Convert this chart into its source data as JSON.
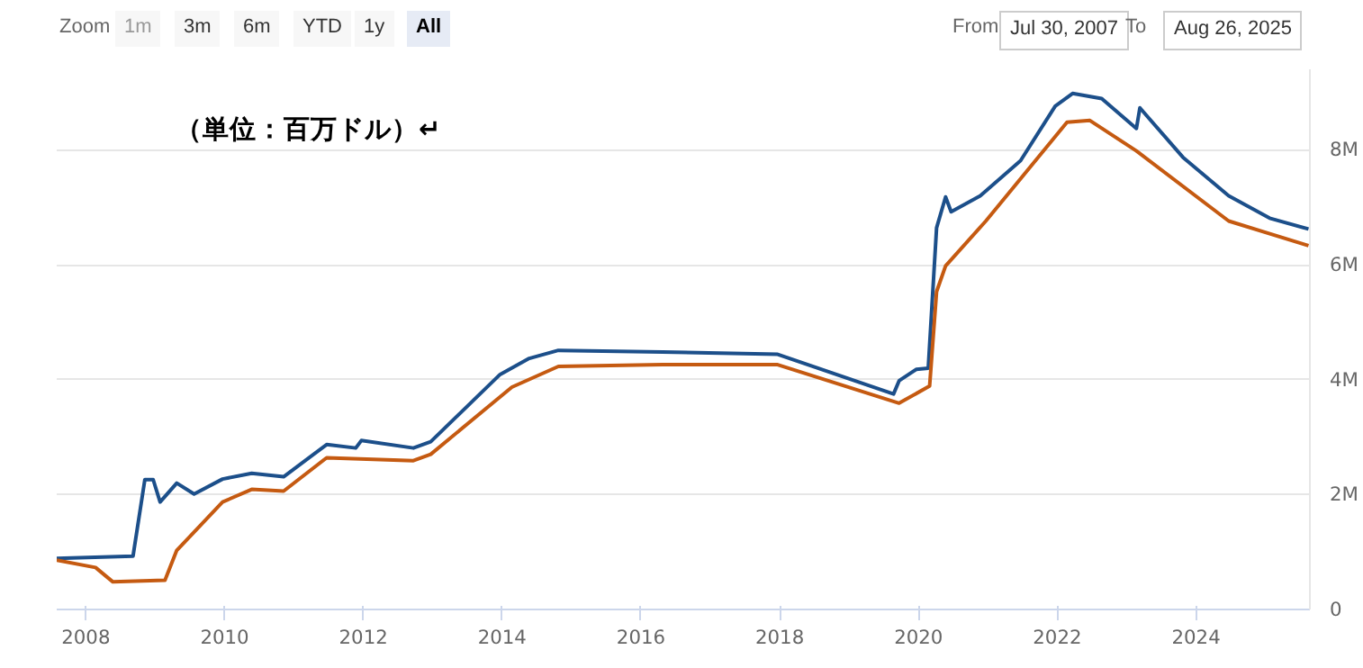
{
  "chart_data": {
    "type": "line",
    "title": "（単位：百万ドル）↵",
    "annotations": [
      "Zoom",
      "1m",
      "3m",
      "6m",
      "YTD",
      "1y",
      "All",
      "From",
      "Jul 30, 2007",
      "To",
      "Aug 26, 2025"
    ],
    "xlim": [
      2007.58,
      2025.64
    ],
    "xticks": [
      2008,
      2010,
      2012,
      2014,
      2016,
      2018,
      2020,
      2022,
      2024
    ],
    "ylim": [
      0,
      9400000
    ],
    "yticks": [
      {
        "value": 0,
        "label": "0"
      },
      {
        "value": 2000000,
        "label": "2M"
      },
      {
        "value": 4000000,
        "label": "4M"
      },
      {
        "value": 6000000,
        "label": "6M"
      },
      {
        "value": 8000000,
        "label": "8M"
      }
    ],
    "grid": "y",
    "marker": "none",
    "line_style": "solid",
    "series": [
      {
        "color": "#1c4f8a",
        "x": [
          2007.58,
          2008.68,
          2008.85,
          2008.97,
          2009.07,
          2009.31,
          2009.56,
          2009.97,
          2010.39,
          2010.85,
          2011.47,
          2011.89,
          2011.97,
          2012.72,
          2012.97,
          2013.97,
          2014.39,
          2014.81,
          2016.31,
          2017.97,
          2019.64,
          2019.72,
          2019.97,
          2020.14,
          2020.26,
          2020.39,
          2020.47,
          2020.89,
          2021.47,
          2021.97,
          2022.22,
          2022.64,
          2023.14,
          2023.19,
          2023.81,
          2024.47,
          2025.06,
          2025.62
        ],
        "values": [
          890000,
          930000,
          2260000,
          2260000,
          1870000,
          2200000,
          2010000,
          2270000,
          2370000,
          2310000,
          2870000,
          2810000,
          2940000,
          2810000,
          2920000,
          4090000,
          4370000,
          4510000,
          4480000,
          4440000,
          3750000,
          3980000,
          4180000,
          4200000,
          6640000,
          7180000,
          6920000,
          7200000,
          7810000,
          8760000,
          8980000,
          8890000,
          8370000,
          8730000,
          7870000,
          7200000,
          6810000,
          6620000
        ]
      },
      {
        "color": "#c55a11",
        "x": [
          2007.58,
          2008.14,
          2008.39,
          2009.14,
          2009.31,
          2009.97,
          2010.39,
          2010.85,
          2011.47,
          2012.72,
          2012.97,
          2014.14,
          2014.81,
          2016.31,
          2017.97,
          2019.72,
          2020.16,
          2020.26,
          2020.39,
          2020.97,
          2022.14,
          2022.47,
          2023.14,
          2024.47,
          2025.62
        ],
        "values": [
          860000,
          730000,
          480000,
          510000,
          1030000,
          1870000,
          2090000,
          2060000,
          2640000,
          2590000,
          2700000,
          3870000,
          4230000,
          4260000,
          4260000,
          3590000,
          3890000,
          5530000,
          5980000,
          6760000,
          8480000,
          8510000,
          7980000,
          6760000,
          6330000
        ]
      }
    ]
  }
}
